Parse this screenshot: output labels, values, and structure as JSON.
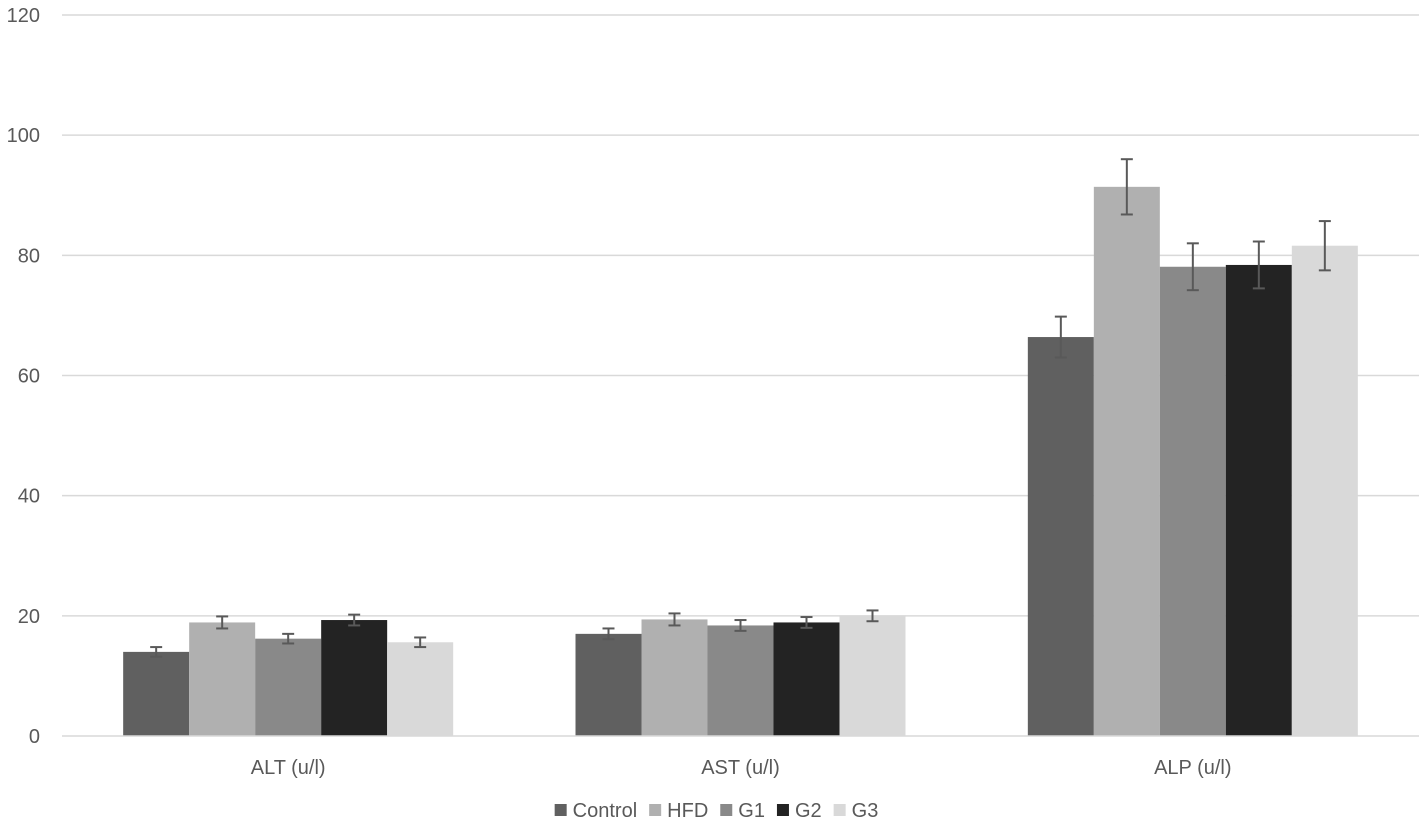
{
  "chart_data": {
    "type": "bar",
    "categories": [
      "ALT (u/l)",
      "AST (u/l)",
      "ALP (u/l)"
    ],
    "series": [
      {
        "name": "Control",
        "color": "#606060",
        "values": [
          14.0,
          17.0,
          66.4
        ],
        "errors": [
          0.8,
          0.9,
          3.4
        ]
      },
      {
        "name": "HFD",
        "color": "#b0b0b0",
        "values": [
          18.9,
          19.4,
          91.4
        ],
        "errors": [
          1.0,
          1.0,
          4.6
        ]
      },
      {
        "name": "G1",
        "color": "#898989",
        "values": [
          16.2,
          18.4,
          78.1
        ],
        "errors": [
          0.8,
          0.9,
          3.9
        ]
      },
      {
        "name": "G2",
        "color": "#232323",
        "values": [
          19.3,
          18.9,
          78.4
        ],
        "errors": [
          0.9,
          0.9,
          3.9
        ]
      },
      {
        "name": "G3",
        "color": "#d9d9d9",
        "values": [
          15.6,
          20.0,
          81.6
        ],
        "errors": [
          0.8,
          0.9,
          4.1
        ]
      }
    ],
    "ylim": [
      0,
      120
    ],
    "yticks": [
      0,
      20,
      40,
      60,
      80,
      100,
      120
    ],
    "grid": true,
    "legend": "bottom"
  }
}
